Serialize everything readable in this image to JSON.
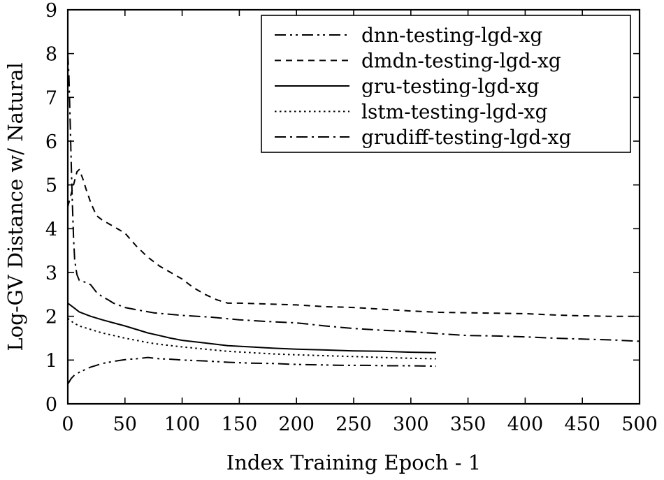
{
  "chart_data": {
    "type": "line",
    "title": "",
    "xlabel": "Index Training Epoch - 1",
    "ylabel": "Log-GV Distance w/ Natural",
    "xlim": [
      0,
      500
    ],
    "ylim": [
      0,
      9
    ],
    "xticks": [
      "0",
      "50",
      "100",
      "150",
      "200",
      "250",
      "300",
      "350",
      "400",
      "450",
      "500"
    ],
    "yticks": [
      "0",
      "1",
      "2",
      "3",
      "4",
      "5",
      "6",
      "7",
      "8",
      "9"
    ],
    "grid": false,
    "legend_position": "top-right",
    "series": [
      {
        "name": "dnn-testing-lgd-xg",
        "dash": "dash-dot-dot",
        "color": "#000000",
        "points": [
          [
            0,
            0.45
          ],
          [
            3,
            0.58
          ],
          [
            6,
            0.66
          ],
          [
            10,
            0.72
          ],
          [
            15,
            0.78
          ],
          [
            20,
            0.84
          ],
          [
            25,
            0.88
          ],
          [
            30,
            0.92
          ],
          [
            40,
            0.97
          ],
          [
            50,
            1.01
          ],
          [
            60,
            1.03
          ],
          [
            70,
            1.06
          ],
          [
            80,
            1.03
          ],
          [
            90,
            1.02
          ],
          [
            100,
            1.0
          ],
          [
            120,
            0.98
          ],
          [
            140,
            0.95
          ],
          [
            160,
            0.93
          ],
          [
            180,
            0.92
          ],
          [
            200,
            0.9
          ],
          [
            220,
            0.89
          ],
          [
            240,
            0.88
          ],
          [
            260,
            0.88
          ],
          [
            280,
            0.87
          ],
          [
            300,
            0.87
          ],
          [
            322,
            0.86
          ]
        ]
      },
      {
        "name": "dmdn-testing-lgd-xg",
        "dash": "dash",
        "color": "#000000",
        "points": [
          [
            0,
            4.5
          ],
          [
            2,
            4.7
          ],
          [
            5,
            5.0
          ],
          [
            8,
            5.3
          ],
          [
            10,
            5.35
          ],
          [
            13,
            5.15
          ],
          [
            16,
            4.9
          ],
          [
            20,
            4.6
          ],
          [
            25,
            4.3
          ],
          [
            30,
            4.2
          ],
          [
            40,
            4.05
          ],
          [
            50,
            3.9
          ],
          [
            60,
            3.6
          ],
          [
            70,
            3.35
          ],
          [
            80,
            3.15
          ],
          [
            90,
            3.0
          ],
          [
            100,
            2.85
          ],
          [
            110,
            2.65
          ],
          [
            120,
            2.5
          ],
          [
            130,
            2.38
          ],
          [
            140,
            2.3
          ],
          [
            150,
            2.3
          ],
          [
            175,
            2.28
          ],
          [
            200,
            2.26
          ],
          [
            225,
            2.22
          ],
          [
            250,
            2.2
          ],
          [
            275,
            2.16
          ],
          [
            300,
            2.12
          ],
          [
            325,
            2.09
          ],
          [
            350,
            2.08
          ],
          [
            375,
            2.07
          ],
          [
            400,
            2.06
          ],
          [
            425,
            2.03
          ],
          [
            450,
            2.01
          ],
          [
            475,
            2.0
          ],
          [
            500,
            2.0
          ]
        ]
      },
      {
        "name": "gru-testing-lgd-xg",
        "dash": "solid",
        "color": "#000000",
        "points": [
          [
            0,
            2.3
          ],
          [
            5,
            2.2
          ],
          [
            10,
            2.1
          ],
          [
            20,
            2.0
          ],
          [
            30,
            1.92
          ],
          [
            40,
            1.85
          ],
          [
            50,
            1.78
          ],
          [
            60,
            1.7
          ],
          [
            70,
            1.62
          ],
          [
            80,
            1.56
          ],
          [
            90,
            1.5
          ],
          [
            100,
            1.45
          ],
          [
            120,
            1.39
          ],
          [
            140,
            1.33
          ],
          [
            160,
            1.3
          ],
          [
            180,
            1.27
          ],
          [
            200,
            1.25
          ],
          [
            225,
            1.23
          ],
          [
            250,
            1.21
          ],
          [
            275,
            1.2
          ],
          [
            300,
            1.18
          ],
          [
            322,
            1.17
          ]
        ]
      },
      {
        "name": "lstm-testing-lgd-xg",
        "dash": "dot",
        "color": "#000000",
        "points": [
          [
            0,
            1.95
          ],
          [
            5,
            1.85
          ],
          [
            10,
            1.78
          ],
          [
            20,
            1.7
          ],
          [
            30,
            1.62
          ],
          [
            40,
            1.56
          ],
          [
            50,
            1.5
          ],
          [
            60,
            1.45
          ],
          [
            70,
            1.4
          ],
          [
            80,
            1.36
          ],
          [
            100,
            1.3
          ],
          [
            120,
            1.25
          ],
          [
            140,
            1.2
          ],
          [
            160,
            1.17
          ],
          [
            180,
            1.14
          ],
          [
            200,
            1.12
          ],
          [
            225,
            1.1
          ],
          [
            250,
            1.08
          ],
          [
            275,
            1.06
          ],
          [
            300,
            1.04
          ],
          [
            322,
            1.03
          ]
        ]
      },
      {
        "name": "grudiff-testing-lgd-xg",
        "dash": "dash-dot",
        "color": "#000000",
        "points": [
          [
            0,
            8.0
          ],
          [
            1,
            7.5
          ],
          [
            2,
            6.5
          ],
          [
            3,
            5.5
          ],
          [
            4,
            4.6
          ],
          [
            5,
            3.8
          ],
          [
            6,
            3.3
          ],
          [
            7,
            3.1
          ],
          [
            8,
            2.95
          ],
          [
            10,
            2.82
          ],
          [
            15,
            2.78
          ],
          [
            20,
            2.72
          ],
          [
            25,
            2.55
          ],
          [
            30,
            2.45
          ],
          [
            35,
            2.38
          ],
          [
            40,
            2.3
          ],
          [
            50,
            2.2
          ],
          [
            60,
            2.15
          ],
          [
            75,
            2.08
          ],
          [
            100,
            2.02
          ],
          [
            125,
            1.98
          ],
          [
            150,
            1.92
          ],
          [
            175,
            1.88
          ],
          [
            200,
            1.85
          ],
          [
            225,
            1.78
          ],
          [
            250,
            1.72
          ],
          [
            275,
            1.68
          ],
          [
            300,
            1.65
          ],
          [
            325,
            1.6
          ],
          [
            350,
            1.56
          ],
          [
            375,
            1.55
          ],
          [
            400,
            1.53
          ],
          [
            425,
            1.5
          ],
          [
            450,
            1.48
          ],
          [
            475,
            1.46
          ],
          [
            500,
            1.43
          ]
        ]
      }
    ]
  }
}
